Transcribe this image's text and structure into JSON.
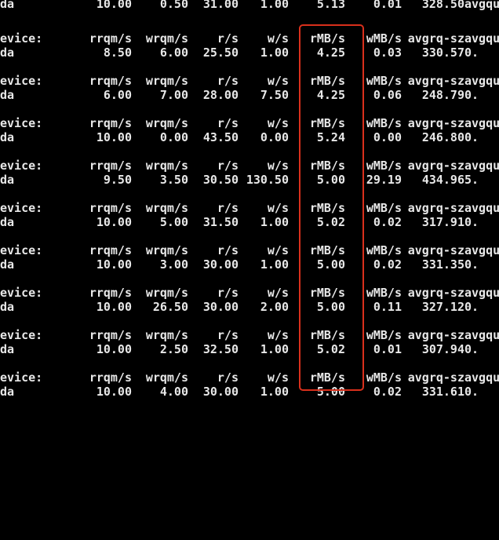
{
  "terminal": {
    "highlight_color": "#d9301c",
    "header": {
      "device": "evice:",
      "rrqm": "rrqm/s",
      "wrqm": "wrqm/s",
      "rs": "r/s",
      "ws": "w/s",
      "rmb": "rMB/s",
      "wmb": "wMB/s",
      "avgrq": "avgrq-sz",
      "avgqu": "avgqu-"
    },
    "top_row": {
      "device": "da",
      "rrqm": "10.00",
      "wrqm": "0.50",
      "rs": "31.00",
      "ws": "1.00",
      "rmb": "5.13",
      "wmb": "0.01",
      "avgrq": "328.50",
      "avgqu": "avgqu"
    },
    "blocks": [
      {
        "device": "da",
        "rrqm": "8.50",
        "wrqm": "6.00",
        "rs": "25.50",
        "ws": "1.00",
        "rmb": "4.25",
        "wmb": "0.03",
        "avgrq": "330.57",
        "avgqu": "0."
      },
      {
        "device": "da",
        "rrqm": "6.00",
        "wrqm": "7.00",
        "rs": "28.00",
        "ws": "7.50",
        "rmb": "4.25",
        "wmb": "0.06",
        "avgrq": "248.79",
        "avgqu": "0."
      },
      {
        "device": "da",
        "rrqm": "10.00",
        "wrqm": "0.00",
        "rs": "43.50",
        "ws": "0.00",
        "rmb": "5.24",
        "wmb": "0.00",
        "avgrq": "246.80",
        "avgqu": "0."
      },
      {
        "device": "da",
        "rrqm": "9.50",
        "wrqm": "3.50",
        "rs": "30.50",
        "ws": "130.50",
        "rmb": "5.00",
        "wmb": "29.19",
        "avgrq": "434.96",
        "avgqu": "5."
      },
      {
        "device": "da",
        "rrqm": "10.00",
        "wrqm": "5.00",
        "rs": "31.50",
        "ws": "1.00",
        "rmb": "5.02",
        "wmb": "0.02",
        "avgrq": "317.91",
        "avgqu": "0."
      },
      {
        "device": "da",
        "rrqm": "10.00",
        "wrqm": "3.00",
        "rs": "30.00",
        "ws": "1.00",
        "rmb": "5.00",
        "wmb": "0.02",
        "avgrq": "331.35",
        "avgqu": "0."
      },
      {
        "device": "da",
        "rrqm": "10.00",
        "wrqm": "26.50",
        "rs": "30.00",
        "ws": "2.00",
        "rmb": "5.00",
        "wmb": "0.11",
        "avgrq": "327.12",
        "avgqu": "0."
      },
      {
        "device": "da",
        "rrqm": "10.00",
        "wrqm": "2.50",
        "rs": "32.50",
        "ws": "1.00",
        "rmb": "5.02",
        "wmb": "0.01",
        "avgrq": "307.94",
        "avgqu": "0."
      },
      {
        "device": "da",
        "rrqm": "10.00",
        "wrqm": "4.00",
        "rs": "30.00",
        "ws": "1.00",
        "rmb": "5.00",
        "wmb": "0.02",
        "avgrq": "331.61",
        "avgqu": "0."
      }
    ]
  }
}
